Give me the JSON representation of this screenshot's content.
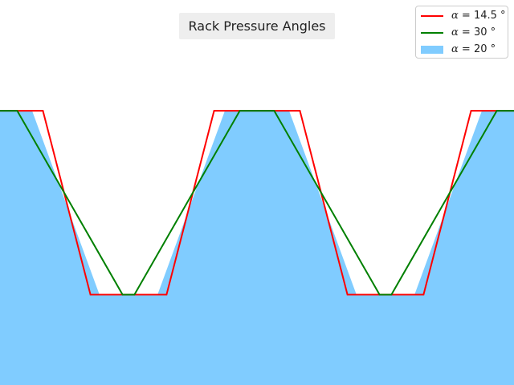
{
  "chart_data": {
    "type": "area",
    "title": "Rack Pressure Angles",
    "xlabel": "",
    "ylabel": "",
    "xlim": [
      -1.0,
      1.0
    ],
    "ylim": [
      -0.8,
      0.5
    ],
    "grid": false,
    "axes_visible": false,
    "legend_position": "top-right",
    "series": [
      {
        "name": "α = 14.5 °",
        "style": "line",
        "color": "#ff0000",
        "x": [
          -1.0,
          -0.833,
          -0.648,
          -0.352,
          -0.167,
          0.0,
          0.167,
          0.352,
          0.648,
          0.833,
          1.0
        ],
        "y": [
          0.126,
          0.126,
          -0.495,
          -0.495,
          0.126,
          0.126,
          0.126,
          -0.495,
          -0.495,
          0.126,
          0.126
        ]
      },
      {
        "name": "α = 30 °",
        "style": "line",
        "color": "#008000",
        "x": [
          -1.0,
          -0.933,
          -0.523,
          -0.477,
          -0.067,
          0.067,
          0.477,
          0.523,
          0.933,
          1.0
        ],
        "y": [
          0.126,
          0.126,
          -0.495,
          -0.495,
          0.126,
          0.126,
          -0.495,
          -0.495,
          0.126,
          0.126
        ]
      },
      {
        "name": "α = 20 °",
        "style": "filled",
        "color": "#80ccff",
        "x": [
          -1.0,
          -0.875,
          -0.613,
          -0.387,
          -0.125,
          0.0,
          0.125,
          0.387,
          0.613,
          0.875,
          1.0
        ],
        "y": [
          0.126,
          0.126,
          -0.495,
          -0.495,
          0.126,
          0.126,
          0.126,
          -0.495,
          -0.495,
          0.126,
          0.126
        ]
      }
    ]
  },
  "legend": {
    "entries": [
      {
        "alpha": "α",
        "rest": " = 14.5 °",
        "color": "#ff0000",
        "kind": "line"
      },
      {
        "alpha": "α",
        "rest": " = 30 °",
        "color": "#008000",
        "kind": "line"
      },
      {
        "alpha": "α",
        "rest": " = 20 °",
        "color": "#80ccff",
        "kind": "patch"
      }
    ]
  }
}
